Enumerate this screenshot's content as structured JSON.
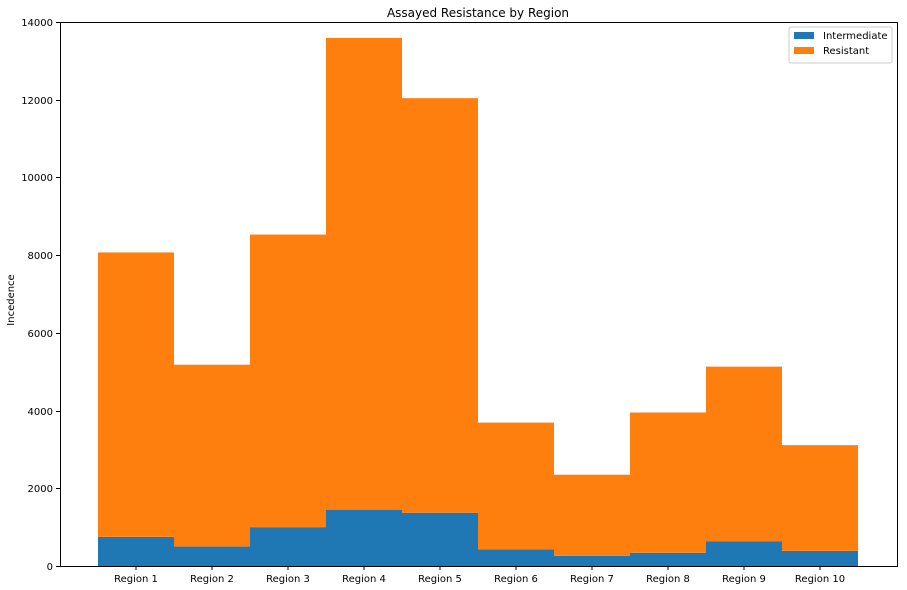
{
  "chart_data": {
    "type": "bar",
    "stacked": true,
    "title": "Assayed Resistance by Region",
    "xlabel": "",
    "ylabel": "Incedence",
    "categories": [
      "Region 1",
      "Region 2",
      "Region 3",
      "Region 4",
      "Region 5",
      "Region 6",
      "Region 7",
      "Region 8",
      "Region 9",
      "Region 10"
    ],
    "ylim": [
      0,
      14000
    ],
    "yticks": [
      0,
      2000,
      4000,
      6000,
      8000,
      10000,
      12000,
      14000
    ],
    "series": [
      {
        "name": "Intermediate",
        "color": "#1f77b4",
        "values": [
          750,
          500,
          1000,
          1450,
          1370,
          430,
          260,
          340,
          630,
          390
        ]
      },
      {
        "name": "Resistant",
        "color": "#ff7f0e",
        "values": [
          7320,
          4680,
          7530,
          12140,
          10670,
          3260,
          2090,
          3610,
          4500,
          2720
        ]
      }
    ],
    "grid": false,
    "legend_position": "top-right"
  }
}
